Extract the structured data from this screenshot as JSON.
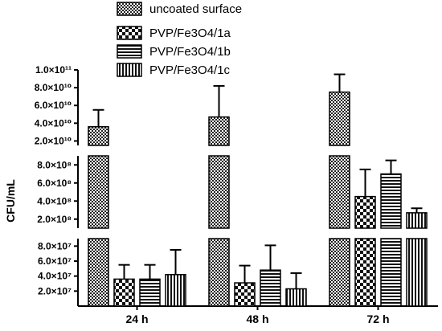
{
  "chart_data": {
    "type": "bar",
    "title": "",
    "xlabel": "",
    "ylabel": "CFU/mL",
    "categories": [
      "24 h",
      "48 h",
      "72 h"
    ],
    "series": [
      {
        "name": "uncoated surface",
        "pattern": "crosshatch",
        "values": [
          36000000000.0,
          47000000000.0,
          75000000000.0
        ],
        "errors": [
          19000000000.0,
          35000000000.0,
          20000000000.0
        ]
      },
      {
        "name": "PVP/Fe3O4/1a",
        "pattern": "checker",
        "values": [
          36000000.0,
          31000000.0,
          450000000.0
        ],
        "errors": [
          19000000.0,
          23000000.0,
          300000000.0
        ]
      },
      {
        "name": "PVP/Fe3O4/1b",
        "pattern": "horizontal-lines",
        "values": [
          36000000.0,
          48000000.0,
          700000000.0
        ],
        "errors": [
          19000000.0,
          33000000.0,
          150000000.0
        ]
      },
      {
        "name": "PVP/Fe3O4/1c",
        "pattern": "vertical-lines",
        "values": [
          42000000.0,
          23000000.0,
          270000000.0
        ],
        "errors": [
          33000000.0,
          21000000.0,
          50000000.0
        ]
      }
    ],
    "y_axis_segments": [
      {
        "range": [
          0,
          90000000.0
        ],
        "ticks": [
          {
            "value": 20000000.0,
            "label": "2.0×10⁷"
          },
          {
            "value": 40000000.0,
            "label": "4.0×10⁷"
          },
          {
            "value": 60000000.0,
            "label": "6.0×10⁷"
          },
          {
            "value": 80000000.0,
            "label": "8.0×10⁷"
          }
        ]
      },
      {
        "range": [
          100000000.0,
          900000000.0
        ],
        "ticks": [
          {
            "value": 200000000.0,
            "label": "2.0×10⁸"
          },
          {
            "value": 400000000.0,
            "label": "4.0×10⁸"
          },
          {
            "value": 600000000.0,
            "label": "6.0×10⁸"
          },
          {
            "value": 800000000.0,
            "label": "8.0×10⁸"
          }
        ]
      },
      {
        "range": [
          15000000000.0,
          100000000000.0
        ],
        "ticks": [
          {
            "value": 20000000000.0,
            "label": "2.0×10¹⁰"
          },
          {
            "value": 40000000000.0,
            "label": "4.0×10¹⁰"
          },
          {
            "value": 60000000000.0,
            "label": "6.0×10¹⁰"
          },
          {
            "value": 80000000000.0,
            "label": "8.0×10¹⁰"
          },
          {
            "value": 100000000000.0,
            "label": "1.0×10¹¹"
          }
        ]
      }
    ],
    "grid": false,
    "legend_position": "top"
  }
}
